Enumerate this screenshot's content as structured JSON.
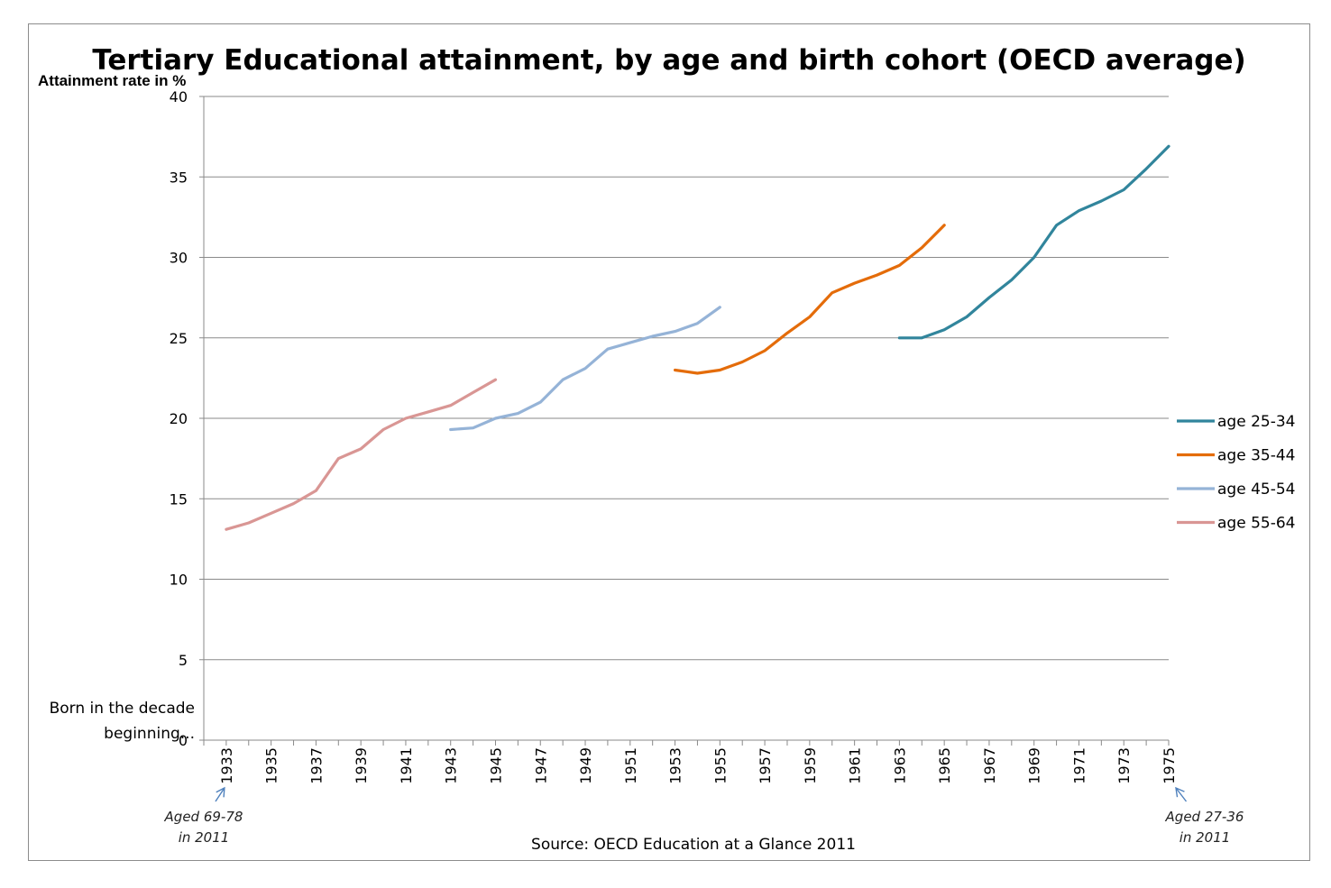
{
  "chart_data": {
    "type": "line",
    "title": "Tertiary Educational attainment, by age and birth cohort (OECD average)",
    "ylabel": "Attainment rate in %",
    "xlabel_lines": [
      "Born in the decade",
      "beginning..."
    ],
    "source": "Source: OECD Education at a Glance 2011",
    "ylim": [
      0,
      40
    ],
    "yticks": [
      0,
      5,
      10,
      15,
      20,
      25,
      30,
      35,
      40
    ],
    "xlim": [
      1932,
      1975
    ],
    "xtick_labels": [
      "1933",
      "1935",
      "1937",
      "1939",
      "1941",
      "1943",
      "1945",
      "1947",
      "1949",
      "1951",
      "1953",
      "1955",
      "1957",
      "1959",
      "1961",
      "1963",
      "1965",
      "1967",
      "1969",
      "1971",
      "1973",
      "1975"
    ],
    "grid": true,
    "legend_position": "right",
    "annotations": [
      {
        "lines": [
          "Aged 69-78",
          "in 2011"
        ],
        "points_to": "1933"
      },
      {
        "lines": [
          "Aged 27-36",
          "in 2011"
        ],
        "points_to": "1975"
      }
    ],
    "series": [
      {
        "name": "age 25-34",
        "color": "#31859c",
        "x": [
          1963,
          1964,
          1965,
          1966,
          1967,
          1968,
          1969,
          1970,
          1971,
          1972,
          1973,
          1974,
          1975
        ],
        "y": [
          25.0,
          25.0,
          25.5,
          26.3,
          27.5,
          28.6,
          30.0,
          32.0,
          32.9,
          33.5,
          34.2,
          35.5,
          36.9
        ]
      },
      {
        "name": "age 35-44",
        "color": "#e46c0a",
        "x": [
          1953,
          1954,
          1955,
          1956,
          1957,
          1958,
          1959,
          1960,
          1961,
          1962,
          1963,
          1964,
          1965
        ],
        "y": [
          23.0,
          22.8,
          23.0,
          23.5,
          24.2,
          25.3,
          26.3,
          27.8,
          28.4,
          28.9,
          29.5,
          30.6,
          32.0
        ]
      },
      {
        "name": "age 45-54",
        "color": "#95b3d7",
        "x": [
          1943,
          1944,
          1945,
          1946,
          1947,
          1948,
          1949,
          1950,
          1951,
          1952,
          1953,
          1954,
          1955
        ],
        "y": [
          19.3,
          19.4,
          20.0,
          20.3,
          21.0,
          22.4,
          23.1,
          24.3,
          24.7,
          25.1,
          25.4,
          25.9,
          26.9
        ]
      },
      {
        "name": "age 55-64",
        "color": "#d99694",
        "x": [
          1933,
          1934,
          1935,
          1936,
          1937,
          1938,
          1939,
          1940,
          1941,
          1942,
          1943,
          1944,
          1945
        ],
        "y": [
          13.1,
          13.5,
          14.1,
          14.7,
          15.5,
          17.5,
          18.1,
          19.3,
          20.0,
          20.4,
          20.8,
          21.6,
          22.4
        ]
      }
    ]
  }
}
